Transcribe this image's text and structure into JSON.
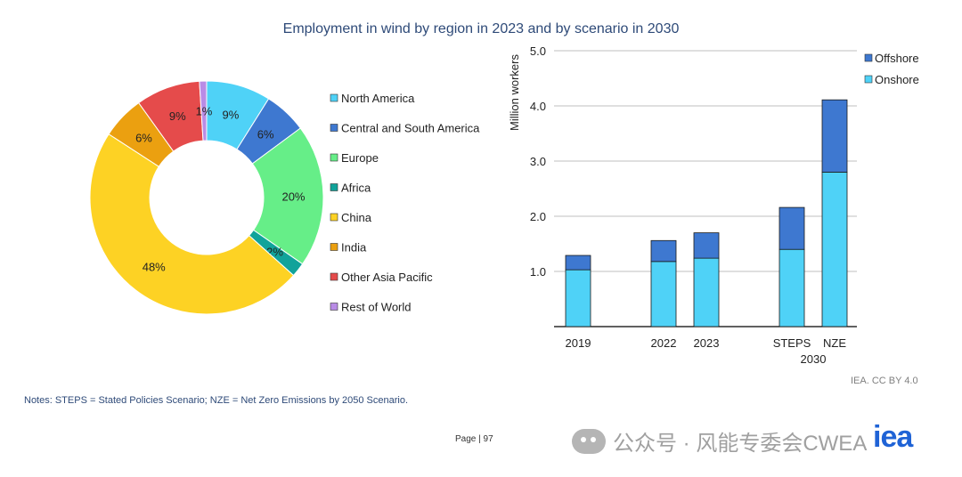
{
  "title": "Employment in wind by region in 2023 and by scenario in 2030",
  "notes": "Notes: STEPS = Stated Policies Scenario; NZE = Net Zero Emissions by 2050 Scenario.",
  "credit": "IEA. CC BY 4.0",
  "page_label": "Page | 97",
  "watermark": "公众号 · 风能专委会CWEA",
  "logo_text": "iea",
  "chart_data": [
    {
      "type": "pie",
      "donut": true,
      "legend_position": "right",
      "slices": [
        {
          "name": "North America",
          "value": 9,
          "label": "9%",
          "color": "#4fd2f7"
        },
        {
          "name": "Central and South America",
          "value": 6,
          "label": "6%",
          "color": "#3e78d0"
        },
        {
          "name": "Europe",
          "value": 20,
          "label": "20%",
          "color": "#66ee88"
        },
        {
          "name": "Africa",
          "value": 2,
          "label": "2%",
          "color": "#11a39a"
        },
        {
          "name": "China",
          "value": 48,
          "label": "48%",
          "color": "#fdd224"
        },
        {
          "name": "India",
          "value": 6,
          "label": "6%",
          "color": "#eba010"
        },
        {
          "name": "Other Asia Pacific",
          "value": 9,
          "label": "9%",
          "color": "#e54b4b"
        },
        {
          "name": "Rest of World",
          "value": 1,
          "label": "1%",
          "color": "#b98ce6"
        }
      ]
    },
    {
      "type": "bar",
      "stacked": true,
      "ylabel": "Million workers",
      "ylim": [
        0,
        5
      ],
      "yticks": [
        "1.0",
        "2.0",
        "3.0",
        "4.0",
        "5.0"
      ],
      "legend_position": "top-right",
      "categories": [
        "2019",
        "2022",
        "2023",
        "STEPS",
        "NZE"
      ],
      "group_label": "2030",
      "series": [
        {
          "name": "Onshore",
          "color": "#4fd2f7",
          "values": [
            1.03,
            1.18,
            1.24,
            1.4,
            2.8
          ]
        },
        {
          "name": "Offshore",
          "color": "#3e78d0",
          "values": [
            0.26,
            0.38,
            0.46,
            0.76,
            1.31
          ]
        }
      ]
    }
  ]
}
